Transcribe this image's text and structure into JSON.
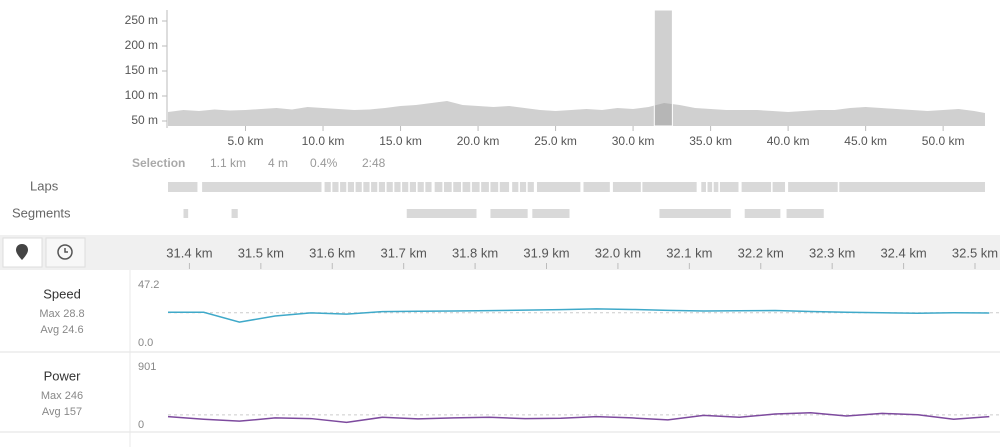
{
  "elevation": {
    "ylim": [
      40,
      272
    ],
    "xlim": [
      0,
      52.7
    ],
    "yticks": [
      {
        "value": 50,
        "label": "50 m"
      },
      {
        "value": 100,
        "label": "100 m"
      },
      {
        "value": 150,
        "label": "150 m"
      },
      {
        "value": 200,
        "label": "200 m"
      },
      {
        "value": 250,
        "label": "250 m"
      }
    ],
    "xticks": [
      {
        "value": 5,
        "label": "5.0 km"
      },
      {
        "value": 10,
        "label": "10.0 km"
      },
      {
        "value": 15,
        "label": "15.0 km"
      },
      {
        "value": 20,
        "label": "20.0 km"
      },
      {
        "value": 25,
        "label": "25.0 km"
      },
      {
        "value": 30,
        "label": "30.0 km"
      },
      {
        "value": 35,
        "label": "35.0 km"
      },
      {
        "value": 40,
        "label": "40.0 km"
      },
      {
        "value": 45,
        "label": "45.0 km"
      },
      {
        "value": 50,
        "label": "50.0 km"
      }
    ],
    "x": [
      0,
      1,
      2,
      3,
      4,
      5,
      6,
      7,
      8,
      9,
      10,
      11,
      12,
      13,
      14,
      15,
      16,
      17,
      18,
      19,
      20,
      21,
      22,
      23,
      24,
      25,
      26,
      27,
      28,
      29,
      30,
      31,
      32,
      33,
      34,
      35,
      36,
      37,
      38,
      39,
      40,
      41,
      42,
      43,
      44,
      45,
      46,
      47,
      48,
      49,
      50,
      51,
      52,
      52.7
    ],
    "values": [
      68,
      72,
      70,
      73,
      71,
      72,
      74,
      76,
      73,
      78,
      76,
      74,
      72,
      73,
      76,
      80,
      82,
      86,
      90,
      82,
      80,
      78,
      80,
      76,
      72,
      70,
      72,
      74,
      72,
      76,
      74,
      78,
      86,
      82,
      76,
      74,
      72,
      72,
      72,
      70,
      68,
      70,
      72,
      72,
      76,
      78,
      76,
      74,
      72,
      70,
      72,
      74,
      70,
      66
    ]
  },
  "selection": {
    "label": "Selection",
    "distance": "1.1 km",
    "elevation": "4 m",
    "grade": "0.4%",
    "time": "2:48"
  },
  "laps_label": "Laps",
  "segments_label": "Segments",
  "laps": [
    [
      0,
      1.9
    ],
    [
      2.2,
      9.9
    ],
    [
      10.1,
      10.5
    ],
    [
      10.6,
      11.0
    ],
    [
      11.1,
      11.5
    ],
    [
      11.6,
      12.0
    ],
    [
      12.1,
      12.5
    ],
    [
      12.6,
      13.0
    ],
    [
      13.1,
      13.5
    ],
    [
      13.6,
      14.0
    ],
    [
      14.1,
      14.5
    ],
    [
      14.6,
      15.0
    ],
    [
      15.1,
      15.5
    ],
    [
      15.6,
      16.0
    ],
    [
      16.1,
      16.5
    ],
    [
      16.6,
      17.0
    ],
    [
      17.2,
      17.7
    ],
    [
      17.8,
      18.3
    ],
    [
      18.4,
      18.9
    ],
    [
      19.0,
      19.5
    ],
    [
      19.6,
      20.1
    ],
    [
      20.2,
      20.7
    ],
    [
      20.8,
      21.3
    ],
    [
      21.4,
      22.0
    ],
    [
      22.2,
      22.6
    ],
    [
      22.7,
      23.1
    ],
    [
      23.2,
      23.6
    ],
    [
      23.8,
      26.6
    ],
    [
      26.8,
      28.5
    ],
    [
      28.7,
      30.5
    ],
    [
      30.6,
      34.1
    ],
    [
      34.4,
      34.7
    ],
    [
      34.8,
      35.1
    ],
    [
      35.2,
      35.5
    ],
    [
      35.6,
      36.8
    ],
    [
      37.0,
      38.9
    ],
    [
      39.0,
      39.8
    ],
    [
      40.0,
      43.2
    ],
    [
      43.3,
      52.7
    ]
  ],
  "segments": [
    [
      1.0,
      1.3
    ],
    [
      4.1,
      4.5
    ],
    [
      15.4,
      19.9
    ],
    [
      20.8,
      23.2
    ],
    [
      23.5,
      25.9
    ],
    [
      31.7,
      36.3
    ],
    [
      37.2,
      39.5
    ],
    [
      39.9,
      42.3
    ]
  ],
  "zoom": {
    "xlim": [
      31.37,
      32.535
    ],
    "xticks": [
      {
        "value": 31.4,
        "label": "31.4 km"
      },
      {
        "value": 31.5,
        "label": "31.5 km"
      },
      {
        "value": 31.6,
        "label": "31.6 km"
      },
      {
        "value": 31.7,
        "label": "31.7 km"
      },
      {
        "value": 31.8,
        "label": "31.8 km"
      },
      {
        "value": 31.9,
        "label": "31.9 km"
      },
      {
        "value": 32.0,
        "label": "32.0 km"
      },
      {
        "value": 32.1,
        "label": "32.1 km"
      },
      {
        "value": 32.2,
        "label": "32.2 km"
      },
      {
        "value": 32.3,
        "label": "32.3 km"
      },
      {
        "value": 32.4,
        "label": "32.4 km"
      },
      {
        "value": 32.5,
        "label": "32.5 km"
      }
    ],
    "x": [
      31.37,
      31.42,
      31.47,
      31.52,
      31.57,
      31.62,
      31.67,
      31.72,
      31.77,
      31.82,
      31.87,
      31.92,
      31.97,
      32.02,
      32.07,
      32.12,
      32.17,
      32.22,
      32.27,
      32.32,
      32.37,
      32.42,
      32.47,
      32.52
    ]
  },
  "speed": {
    "label": "Speed",
    "max": "Max 28.8",
    "avg": {
      "value": 24.6,
      "label": "Avg 24.6"
    },
    "color": "#3fa9c9",
    "ylim": [
      0,
      47.2
    ],
    "yticks": [
      {
        "value": 0,
        "label": "0.0"
      },
      47.2
    ],
    "values": [
      25,
      25,
      17,
      22,
      24.5,
      23.5,
      25.5,
      25.8,
      26,
      26.3,
      26.8,
      27.2,
      27.8,
      27.3,
      26.5,
      26,
      26.2,
      26.4,
      25.6,
      25,
      24.6,
      24.2,
      24.6,
      24.4
    ]
  },
  "power": {
    "label": "Power",
    "max": "Max 246",
    "avg": {
      "value": 157,
      "label": "Avg 157"
    },
    "color": "#7d4a9e",
    "ylim": [
      0,
      901
    ],
    "yticks": [
      0,
      901
    ],
    "values": [
      130,
      90,
      60,
      110,
      100,
      40,
      120,
      95,
      110,
      120,
      100,
      105,
      130,
      110,
      80,
      150,
      120,
      170,
      190,
      140,
      180,
      160,
      90,
      130
    ]
  }
}
